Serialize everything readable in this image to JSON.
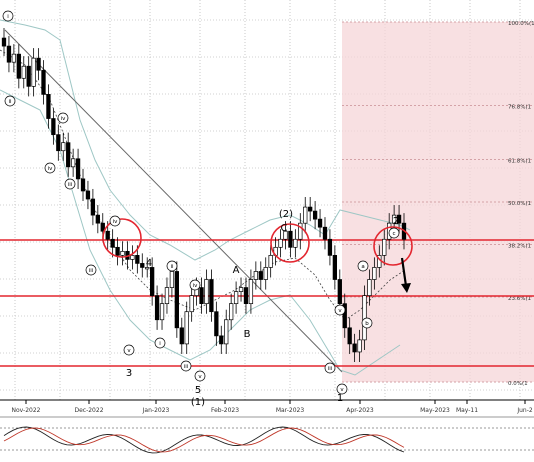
{
  "chart_data": {
    "type": "candlestick",
    "title": "",
    "xlabel": "",
    "ylabel": "",
    "grid": true,
    "x_ticks": [
      "Nov-2022",
      "Dec-2022",
      "Jan-2023",
      "Feb-2023",
      "Mar-2023",
      "Apr-2023",
      "May-2023",
      "May-11",
      "Jun-2"
    ],
    "fib_levels": [
      {
        "label": "100.0%(1",
        "ratio": 1.0
      },
      {
        "label": "76.8%(1",
        "ratio": 0.768
      },
      {
        "label": "61.8%(1",
        "ratio": 0.618
      },
      {
        "label": "50.0%(1",
        "ratio": 0.5
      },
      {
        "label": "38.2%(1",
        "ratio": 0.382
      },
      {
        "label": "23.6%(1",
        "ratio": 0.236
      },
      {
        "label": "0.0%(1",
        "ratio": 0.0
      }
    ],
    "horizontal_lines": [
      "resistance-upper",
      "resistance-middle",
      "support-lower"
    ],
    "close_series": [
      88,
      84,
      86,
      80,
      83,
      78,
      85,
      82,
      76,
      70,
      66,
      62,
      64,
      58,
      60,
      55,
      52,
      50,
      46,
      44,
      42,
      40,
      38,
      36,
      37,
      35,
      36,
      34,
      33,
      33,
      26,
      20,
      24,
      28,
      32,
      18,
      14,
      22,
      26,
      28,
      24,
      30,
      22,
      16,
      14,
      20,
      24,
      27,
      28,
      24,
      30,
      32,
      30,
      33,
      36,
      38,
      40,
      42,
      38,
      40,
      44,
      48,
      47,
      45,
      43,
      40,
      36,
      30,
      24,
      18,
      14,
      12,
      15,
      26,
      30,
      33,
      36,
      40,
      44,
      46,
      44,
      40
    ],
    "wave_labels_top": [
      "2",
      "(2)",
      "A",
      "C",
      "4"
    ],
    "wave_labels_bottom": [
      "3",
      "5",
      "(1)",
      "B",
      "1"
    ],
    "sub_labels": [
      "iii",
      "iv",
      "iv",
      "v",
      "ii",
      "iv",
      "i",
      "iii",
      "v",
      "a",
      "b",
      "c",
      "iii",
      "v",
      "i",
      "ii",
      "iv",
      "iii",
      "v"
    ],
    "indicator": {
      "type": "stochastic",
      "lines": [
        "main",
        "signal"
      ]
    }
  }
}
